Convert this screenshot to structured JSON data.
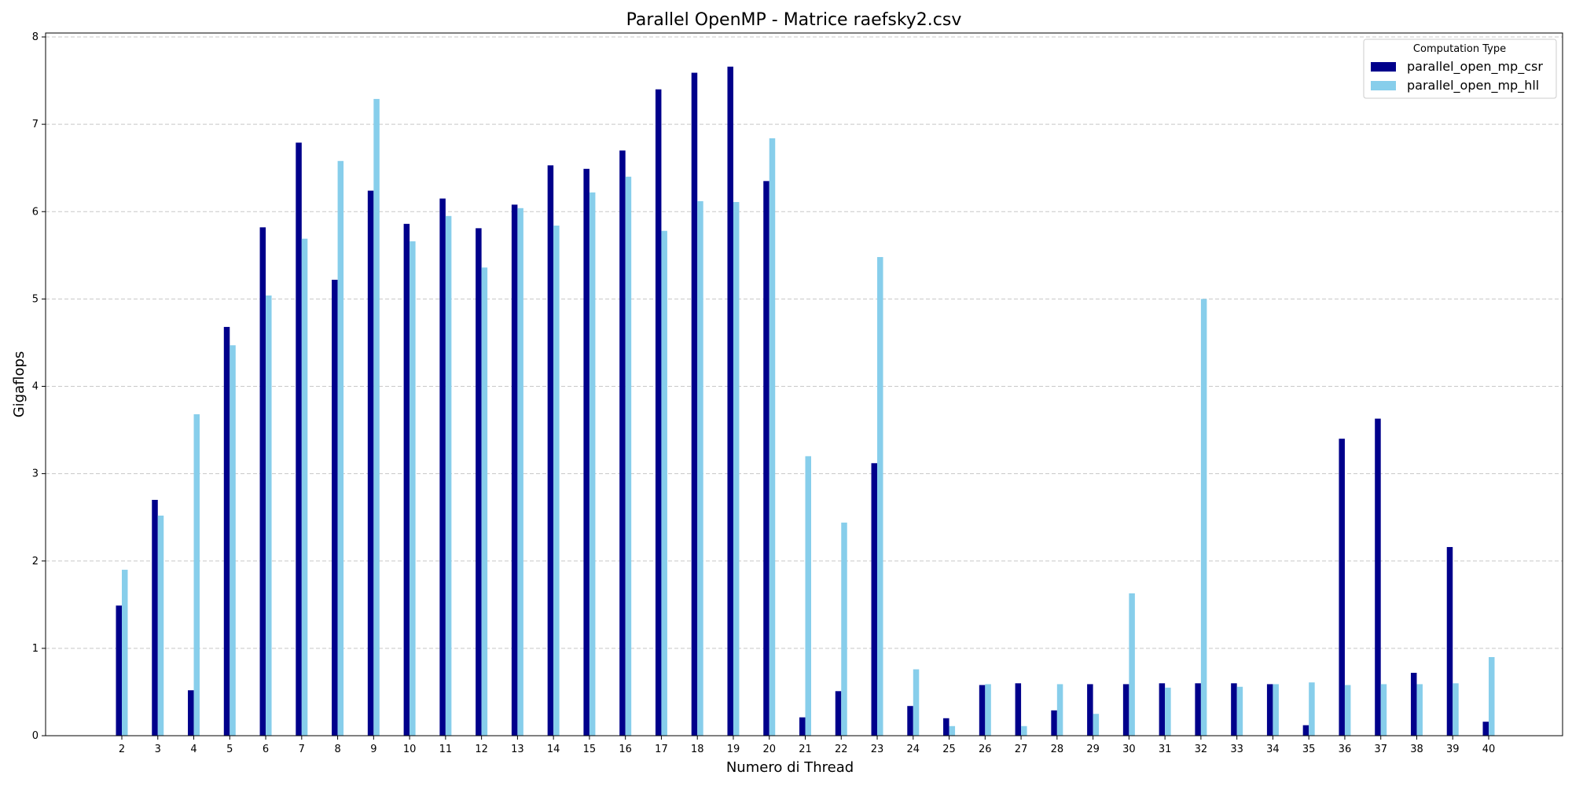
{
  "chart_data": {
    "type": "bar",
    "title": "Parallel OpenMP - Matrice raefsky2.csv",
    "xlabel": "Numero di Thread",
    "ylabel": "Gigaflops",
    "ylim": [
      0,
      8
    ],
    "yticks": [
      "0",
      "1",
      "2",
      "3",
      "4",
      "5",
      "6",
      "7",
      "8"
    ],
    "grid": "y, dashed",
    "legend": {
      "title": "Computation Type",
      "position": "top-right"
    },
    "categories": [
      "2",
      "3",
      "4",
      "5",
      "6",
      "7",
      "8",
      "9",
      "10",
      "11",
      "12",
      "13",
      "14",
      "15",
      "16",
      "17",
      "18",
      "19",
      "20",
      "21",
      "22",
      "23",
      "24",
      "25",
      "26",
      "27",
      "28",
      "29",
      "30",
      "31",
      "32",
      "33",
      "34",
      "35",
      "36",
      "37",
      "38",
      "39",
      "40"
    ],
    "series": [
      {
        "name": "parallel_open_mp_csr",
        "color": "#00008b",
        "values": [
          1.49,
          2.7,
          0.52,
          4.68,
          5.82,
          6.79,
          5.22,
          6.24,
          5.86,
          6.15,
          5.81,
          6.08,
          6.53,
          6.49,
          6.7,
          7.4,
          7.59,
          7.66,
          6.35,
          0.21,
          0.51,
          3.12,
          0.34,
          0.2,
          0.58,
          0.6,
          0.29,
          0.59,
          0.59,
          0.6,
          0.6,
          0.6,
          0.59,
          0.12,
          3.4,
          3.63,
          0.72,
          2.16,
          0.16
        ]
      },
      {
        "name": "parallel_open_mp_hll",
        "color": "#87ceeb",
        "values": [
          1.9,
          2.52,
          3.68,
          4.47,
          5.04,
          5.69,
          6.58,
          7.29,
          5.66,
          5.95,
          5.36,
          6.04,
          5.84,
          6.22,
          6.4,
          5.78,
          6.12,
          6.11,
          6.84,
          3.2,
          2.44,
          5.48,
          0.76,
          0.11,
          0.59,
          0.11,
          0.59,
          0.25,
          1.63,
          0.55,
          5.0,
          0.56,
          0.59,
          0.61,
          0.58,
          0.59,
          0.59,
          0.6,
          0.9
        ]
      }
    ]
  }
}
